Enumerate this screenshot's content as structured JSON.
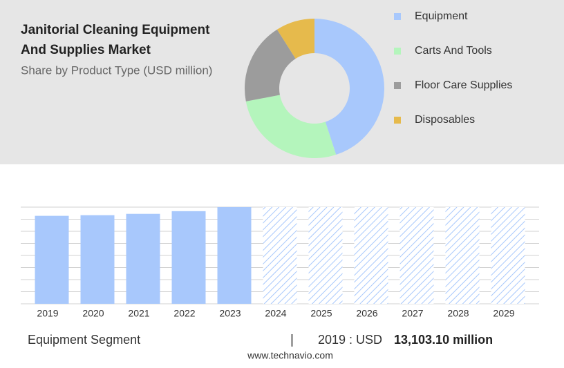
{
  "header": {
    "title_lines": [
      "Janitorial Cleaning Equipment",
      "And Supplies Market"
    ],
    "subtitle": "Share by Product Type (USD million)"
  },
  "chart_data": [
    {
      "type": "pie",
      "categories": [
        "Equipment",
        "Carts And Tools",
        "Floor Care Supplies",
        "Disposables"
      ],
      "values": [
        45,
        27,
        19,
        9
      ],
      "colors": [
        "#a8c8fc",
        "#b4f5bc",
        "#9c9c9c",
        "#e6ba4c"
      ],
      "legend": "right"
    },
    {
      "type": "bar",
      "categories": [
        "2019",
        "2020",
        "2021",
        "2022",
        "2023",
        "2024",
        "2025",
        "2026",
        "2027",
        "2028",
        "2029"
      ],
      "values": [
        13103.1,
        13200,
        13400,
        13800,
        14400,
        null,
        null,
        null,
        null,
        null,
        null
      ],
      "color": "#a8c8fc",
      "ylim": [
        0,
        14400
      ],
      "grid": true
    }
  ],
  "footer": {
    "segment": "Equipment Segment",
    "separator": "|",
    "highlight_label": "2019 : USD",
    "highlight_value": "13,103.10 million",
    "source": "www.technavio.com"
  }
}
